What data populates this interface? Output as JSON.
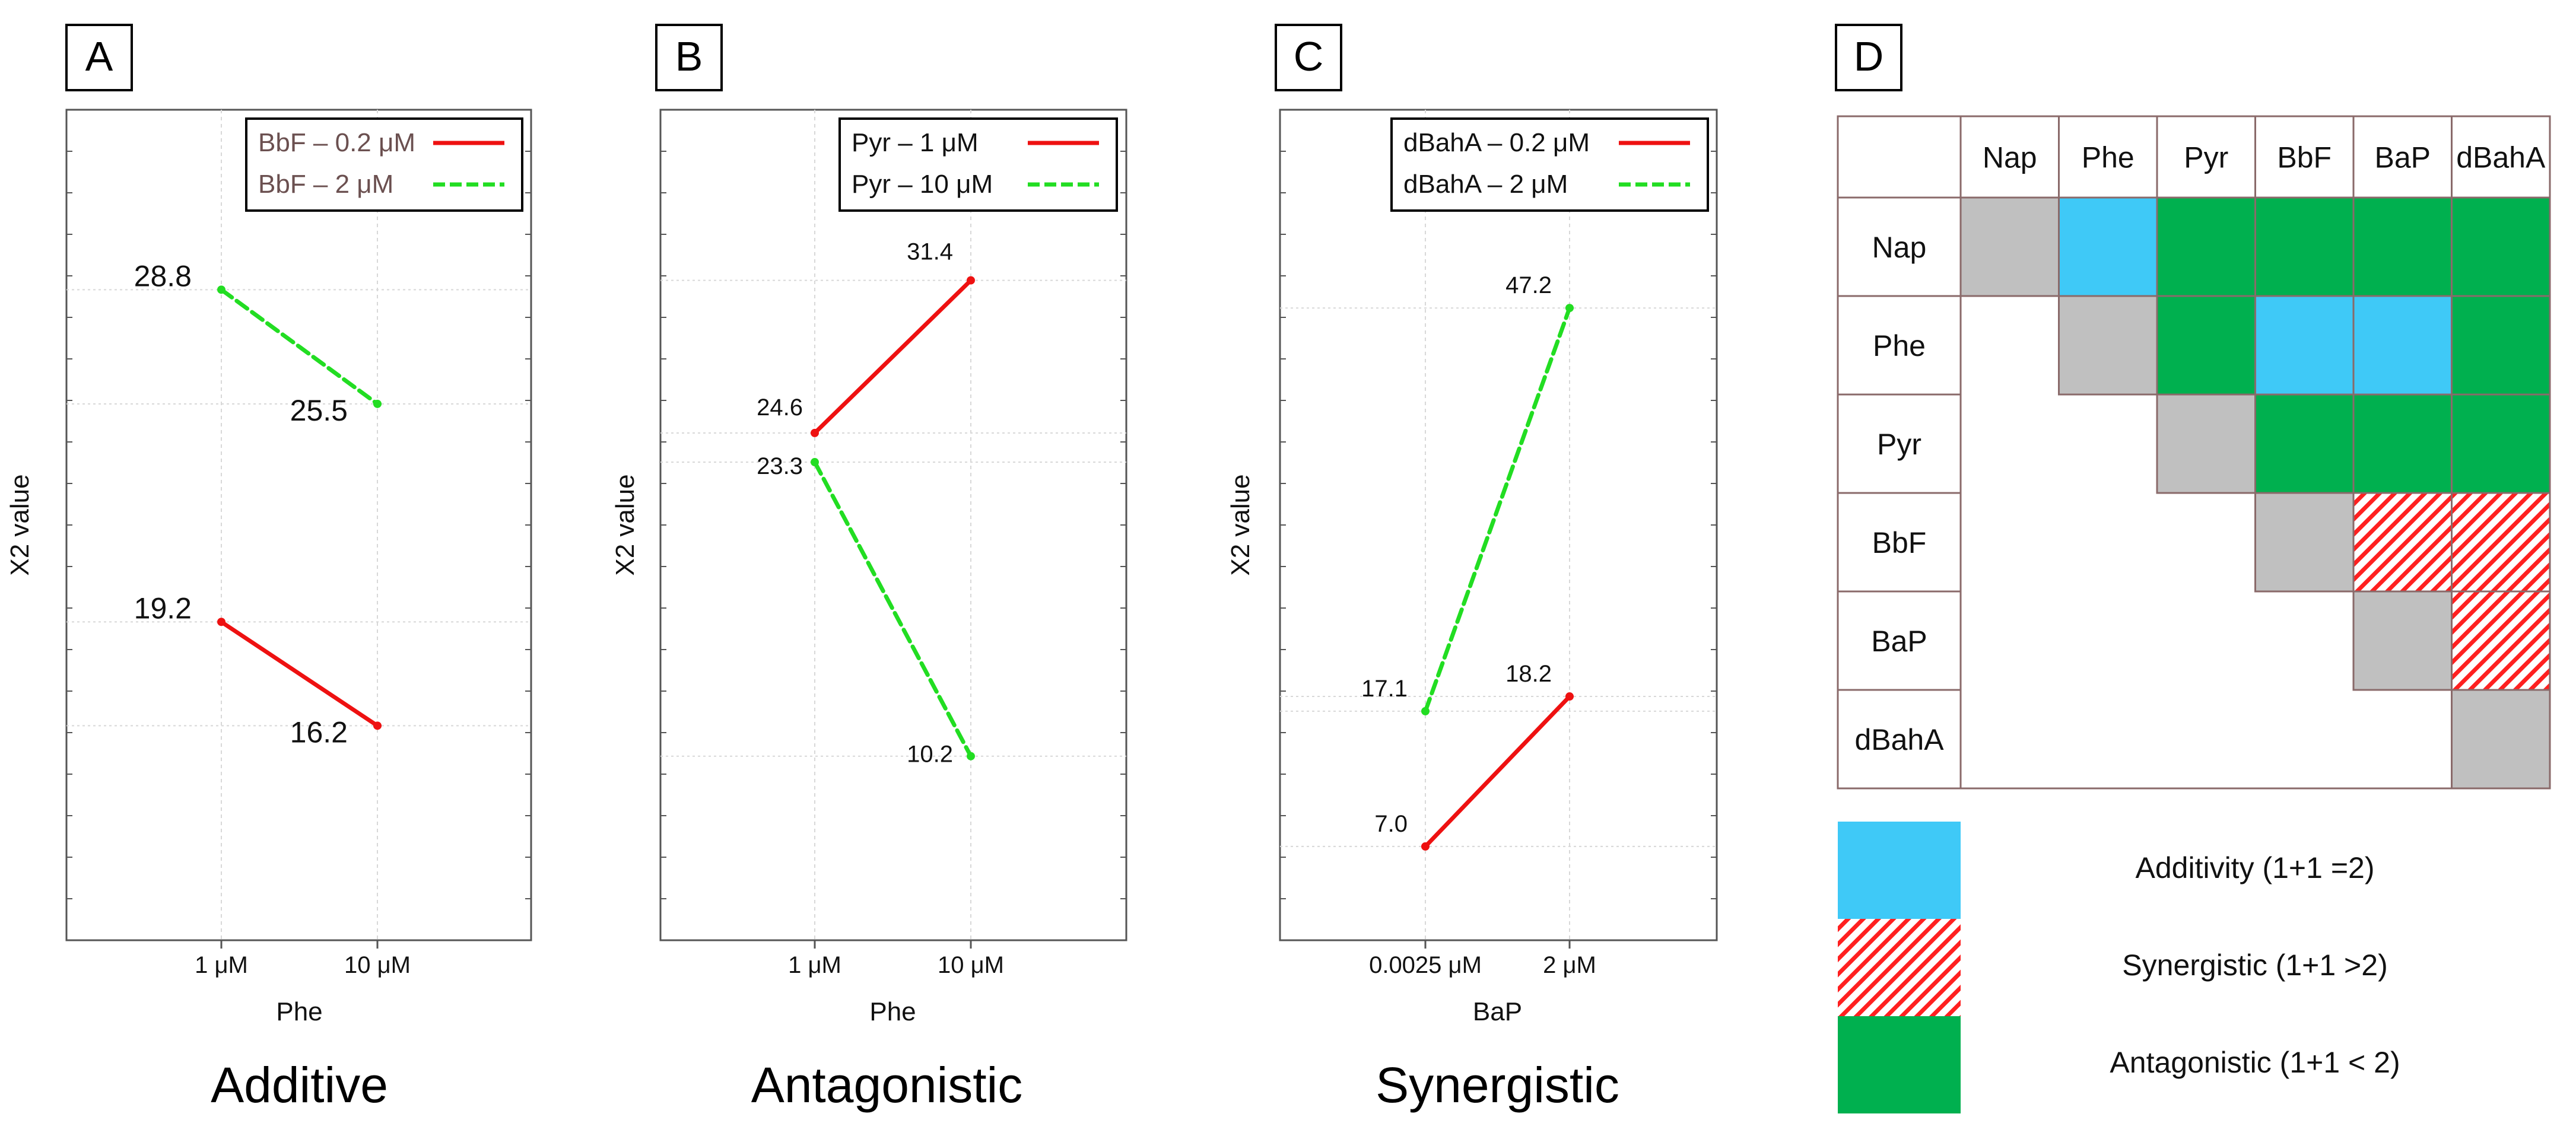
{
  "colors": {
    "red": "#ee1111",
    "green": "#22dd22",
    "additivity": "#3fc9f7",
    "antagonistic": "#00b04f",
    "diagonal": "#c0c0c0",
    "hatch": "#ff2020",
    "grid_border": "#8a6a6a",
    "axis": "#555555"
  },
  "chart_data": [
    {
      "panel_label": "A",
      "type": "line",
      "title": "Additive",
      "xlabel": "Phe",
      "ylabel": "X2 value",
      "categories": [
        "1 μM",
        "10 μM"
      ],
      "ylim": [
        10,
        34
      ],
      "legend_position": "top-right",
      "series": [
        {
          "name": "BbF – 0.2 μM",
          "color": "red",
          "style": "solid",
          "values": [
            19.2,
            16.2
          ],
          "value_labels": [
            "19.2",
            "16.2"
          ]
        },
        {
          "name": "BbF – 2 μM",
          "color": "green",
          "style": "dashed",
          "values": [
            28.8,
            25.5
          ],
          "value_labels": [
            "28.8",
            "25.5"
          ]
        }
      ]
    },
    {
      "panel_label": "B",
      "type": "line",
      "title": "Antagonistic",
      "xlabel": "Phe",
      "ylabel": "X2 value",
      "categories": [
        "1 μM",
        "10 μM"
      ],
      "ylim": [
        2,
        39
      ],
      "legend_position": "top-right",
      "series": [
        {
          "name": "Pyr – 1 μM",
          "color": "red",
          "style": "solid",
          "values": [
            24.6,
            31.4
          ],
          "value_labels": [
            "24.6",
            "31.4"
          ]
        },
        {
          "name": "Pyr – 10 μM",
          "color": "green",
          "style": "dashed",
          "values": [
            23.3,
            10.2
          ],
          "value_labels": [
            "23.3",
            "10.2"
          ]
        }
      ]
    },
    {
      "panel_label": "C",
      "type": "line",
      "title": "Synergistic",
      "xlabel": "BaP",
      "ylabel": "X2 value",
      "categories": [
        "0.0025 μM",
        "2 μM"
      ],
      "ylim": [
        0,
        62
      ],
      "legend_position": "top-right",
      "series": [
        {
          "name": "dBahA – 0.2 μM",
          "color": "red",
          "style": "solid",
          "values": [
            7.0,
            18.2
          ],
          "value_labels": [
            "7.0",
            "18.2"
          ]
        },
        {
          "name": "dBahA – 2 μM",
          "color": "green",
          "style": "dashed",
          "values": [
            17.1,
            47.2
          ],
          "value_labels": [
            "17.1",
            "47.2"
          ]
        }
      ]
    },
    {
      "panel_label": "D",
      "type": "heatmap",
      "title": "",
      "labels": [
        "Nap",
        "Phe",
        "Pyr",
        "BbF",
        "BaP",
        "dBahA"
      ],
      "matrix": [
        [
          "diag",
          "add",
          "ant",
          "ant",
          "ant",
          "ant"
        ],
        [
          "",
          "diag",
          "ant",
          "add",
          "add",
          "ant"
        ],
        [
          "",
          "",
          "diag",
          "ant",
          "ant",
          "ant"
        ],
        [
          "",
          "",
          "",
          "diag",
          "syn",
          "syn"
        ],
        [
          "",
          "",
          "",
          "",
          "diag",
          "syn"
        ],
        [
          "",
          "",
          "",
          "",
          "",
          "diag"
        ]
      ],
      "legend": [
        {
          "key": "add",
          "label": "Additivity (1+1 =2)"
        },
        {
          "key": "syn",
          "label": "Synergistic (1+1 >2)"
        },
        {
          "key": "ant",
          "label": "Antagonistic (1+1 < 2)"
        }
      ]
    }
  ]
}
